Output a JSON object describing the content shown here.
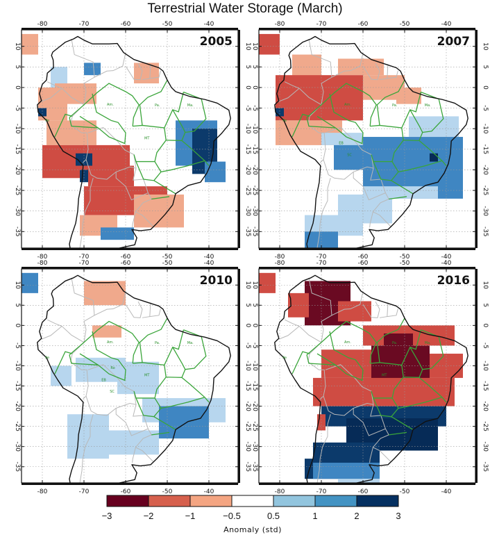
{
  "title": "Terrestrial Water Storage (March)",
  "lon_ticks": [
    -80,
    -70,
    -60,
    -50,
    -40
  ],
  "lat_ticks": [
    10,
    5,
    0,
    -5,
    -10,
    -15,
    -20,
    -25,
    -30,
    -35
  ],
  "region_labels": [
    "Pe",
    "Am.",
    "Pa.",
    "Ma.",
    "MT",
    "Ro",
    "EB",
    "SC"
  ],
  "panels": [
    {
      "year": "2005",
      "anomalies": [
        {
          "cat": 2,
          "lon": [
            -85,
            -81
          ],
          "lat": [
            8,
            13
          ]
        },
        {
          "cat": 4,
          "lon": [
            -78,
            -74
          ],
          "lat": [
            -1,
            5
          ]
        },
        {
          "cat": 5,
          "lon": [
            -70,
            -66
          ],
          "lat": [
            3,
            6
          ]
        },
        {
          "cat": 2,
          "lon": [
            -58,
            -52
          ],
          "lat": [
            1,
            6
          ]
        },
        {
          "cat": 2,
          "lon": [
            -81,
            -74
          ],
          "lat": [
            -8,
            0
          ]
        },
        {
          "cat": 2,
          "lon": [
            -77,
            -67
          ],
          "lat": [
            -4,
            1
          ]
        },
        {
          "cat": 6,
          "lon": [
            -81,
            -79
          ],
          "lat": [
            -7,
            -5
          ]
        },
        {
          "cat": 2,
          "lon": [
            -79,
            -67
          ],
          "lat": [
            -14,
            -8
          ]
        },
        {
          "cat": 1,
          "lon": [
            -80,
            -59
          ],
          "lat": [
            -22,
            -14
          ]
        },
        {
          "cat": 6,
          "lon": [
            -72,
            -68
          ],
          "lat": [
            -19,
            -16
          ]
        },
        {
          "cat": 6,
          "lon": [
            -71,
            -68
          ],
          "lat": [
            -23,
            -20
          ]
        },
        {
          "cat": 1,
          "lon": [
            -69,
            -58
          ],
          "lat": [
            -24,
            -19
          ]
        },
        {
          "cat": 1,
          "lon": [
            -70,
            -50
          ],
          "lat": [
            -31,
            -24
          ]
        },
        {
          "cat": 2,
          "lon": [
            -58,
            -46
          ],
          "lat": [
            -34,
            -26
          ]
        },
        {
          "cat": 2,
          "lon": [
            -71,
            -62
          ],
          "lat": [
            -36,
            -31
          ]
        },
        {
          "cat": 5,
          "lon": [
            -48,
            -38
          ],
          "lat": [
            -19,
            -8
          ]
        },
        {
          "cat": 6,
          "lon": [
            -44,
            -38
          ],
          "lat": [
            -21,
            -10
          ]
        },
        {
          "cat": 5,
          "lon": [
            -41,
            -36
          ],
          "lat": [
            -23,
            -18
          ]
        },
        {
          "cat": 5,
          "lon": [
            -66,
            -58
          ],
          "lat": [
            -37,
            -34
          ]
        }
      ]
    },
    {
      "year": "2007",
      "anomalies": [
        {
          "cat": 1,
          "lon": [
            -85,
            -80
          ],
          "lat": [
            8,
            13
          ]
        },
        {
          "cat": 2,
          "lon": [
            -77,
            -70
          ],
          "lat": [
            2,
            8
          ]
        },
        {
          "cat": 2,
          "lon": [
            -66,
            -55
          ],
          "lat": [
            3,
            7
          ]
        },
        {
          "cat": 1,
          "lon": [
            -81,
            -60
          ],
          "lat": [
            -8,
            3
          ]
        },
        {
          "cat": 2,
          "lon": [
            -60,
            -50
          ],
          "lat": [
            -3,
            3
          ]
        },
        {
          "cat": 2,
          "lon": [
            -81,
            -65
          ],
          "lat": [
            -14,
            -8
          ]
        },
        {
          "cat": 2,
          "lon": [
            -52,
            -46
          ],
          "lat": [
            -4,
            0
          ]
        },
        {
          "cat": 6,
          "lon": [
            -81,
            -79
          ],
          "lat": [
            -7,
            -5
          ]
        },
        {
          "cat": 5,
          "lon": [
            -67,
            -60
          ],
          "lat": [
            -20,
            -13
          ]
        },
        {
          "cat": 4,
          "lon": [
            -70,
            -60
          ],
          "lat": [
            -14,
            -11
          ]
        },
        {
          "cat": 5,
          "lon": [
            -60,
            -36
          ],
          "lat": [
            -27,
            -12
          ]
        },
        {
          "cat": 4,
          "lon": [
            -49,
            -37
          ],
          "lat": [
            -12,
            -7
          ]
        },
        {
          "cat": 7,
          "lon": [
            -44,
            -42
          ],
          "lat": [
            -18,
            -16
          ]
        },
        {
          "cat": 4,
          "lon": [
            -60,
            -42
          ],
          "lat": [
            -27,
            -24
          ]
        },
        {
          "cat": 4,
          "lon": [
            -66,
            -53
          ],
          "lat": [
            -33,
            -26
          ]
        },
        {
          "cat": 4,
          "lon": [
            -74,
            -60
          ],
          "lat": [
            -36,
            -31
          ]
        },
        {
          "cat": 5,
          "lon": [
            -74,
            -66
          ],
          "lat": [
            -42,
            -35
          ]
        }
      ]
    },
    {
      "year": "2010",
      "anomalies": [
        {
          "cat": 5,
          "lon": [
            -85,
            -81
          ],
          "lat": [
            8,
            13
          ]
        },
        {
          "cat": 2,
          "lon": [
            -70,
            -60
          ],
          "lat": [
            5,
            11
          ]
        },
        {
          "cat": 3,
          "lon": [
            -76,
            -70
          ],
          "lat": [
            0,
            6
          ]
        },
        {
          "cat": 3,
          "lon": [
            -60,
            -50
          ],
          "lat": [
            0,
            6
          ]
        },
        {
          "cat": 3,
          "lon": [
            -72,
            -52
          ],
          "lat": [
            -6,
            2
          ]
        },
        {
          "cat": 2,
          "lon": [
            -68,
            -61
          ],
          "lat": [
            -3,
            0
          ]
        },
        {
          "cat": 3,
          "lon": [
            -81,
            -77
          ],
          "lat": [
            -8,
            -4
          ]
        },
        {
          "cat": 4,
          "lon": [
            -78,
            -73
          ],
          "lat": [
            -15,
            -10
          ]
        },
        {
          "cat": 4,
          "lon": [
            -72,
            -60
          ],
          "lat": [
            -14,
            -8
          ]
        },
        {
          "cat": 4,
          "lon": [
            -62,
            -52
          ],
          "lat": [
            -17,
            -9
          ]
        },
        {
          "cat": 4,
          "lon": [
            -56,
            -36
          ],
          "lat": [
            -24,
            -18
          ]
        },
        {
          "cat": 5,
          "lon": [
            -52,
            -40
          ],
          "lat": [
            -28,
            -20
          ]
        },
        {
          "cat": 4,
          "lon": [
            -66,
            -52
          ],
          "lat": [
            -32,
            -26
          ]
        },
        {
          "cat": 4,
          "lon": [
            -74,
            -64
          ],
          "lat": [
            -33,
            -22
          ]
        },
        {
          "cat": 5,
          "lon": [
            -78,
            -70
          ],
          "lat": [
            -42,
            -39
          ]
        },
        {
          "cat": 3,
          "lon": [
            -66,
            -60
          ],
          "lat": [
            -41,
            -38
          ]
        }
      ]
    },
    {
      "year": "2016",
      "anomalies": [
        {
          "cat": 1,
          "lon": [
            -85,
            -81
          ],
          "lat": [
            8,
            13
          ]
        },
        {
          "cat": 0,
          "lon": [
            -74,
            -63
          ],
          "lat": [
            0,
            11
          ]
        },
        {
          "cat": 1,
          "lon": [
            -78,
            -73
          ],
          "lat": [
            2,
            8
          ]
        },
        {
          "cat": 1,
          "lon": [
            -66,
            -58
          ],
          "lat": [
            1,
            6
          ]
        },
        {
          "cat": 1,
          "lon": [
            -60,
            -38
          ],
          "lat": [
            -5,
            0
          ]
        },
        {
          "cat": 0,
          "lon": [
            -58,
            -44
          ],
          "lat": [
            -14,
            -5
          ]
        },
        {
          "cat": 0,
          "lon": [
            -55,
            -48
          ],
          "lat": [
            -5,
            -2
          ]
        },
        {
          "cat": 1,
          "lon": [
            -72,
            -38
          ],
          "lat": [
            -20,
            -13
          ]
        },
        {
          "cat": 1,
          "lon": [
            -70,
            -58
          ],
          "lat": [
            -13,
            -6
          ]
        },
        {
          "cat": 1,
          "lon": [
            -44,
            -36
          ],
          "lat": [
            -13,
            -7
          ]
        },
        {
          "cat": 6,
          "lon": [
            -70,
            -40
          ],
          "lat": [
            -25,
            -20
          ]
        },
        {
          "cat": 7,
          "lon": [
            -64,
            -42
          ],
          "lat": [
            -31,
            -23
          ]
        },
        {
          "cat": 6,
          "lon": [
            -72,
            -56
          ],
          "lat": [
            -35,
            -29
          ]
        },
        {
          "cat": 6,
          "lon": [
            -74,
            -60
          ],
          "lat": [
            -38,
            -33
          ]
        },
        {
          "cat": 5,
          "lon": [
            -72,
            -56
          ],
          "lat": [
            -38,
            -34
          ]
        },
        {
          "cat": 1,
          "lon": [
            -71,
            -69
          ],
          "lat": [
            -26,
            -22
          ]
        },
        {
          "cat": 4,
          "lon": [
            -66,
            -56
          ],
          "lat": [
            -42,
            -38
          ]
        }
      ]
    }
  ],
  "colorbar": {
    "ticks": [
      "−3",
      "−2",
      "−1",
      "−0.5",
      "0.5",
      "1",
      "2",
      "3"
    ],
    "colors": [
      "#67001f",
      "#d6604d",
      "#f4a582",
      "#ffffff",
      "#92c5de",
      "#4393c3",
      "#053061"
    ],
    "label": "Anomaly (std)"
  },
  "category_colors": [
    "#6a0a22",
    "#cf4c43",
    "#f0a98c",
    "#ffffff",
    "#b7d6ee",
    "#3f86c2",
    "#0c3a6b",
    "#062b57"
  ]
}
